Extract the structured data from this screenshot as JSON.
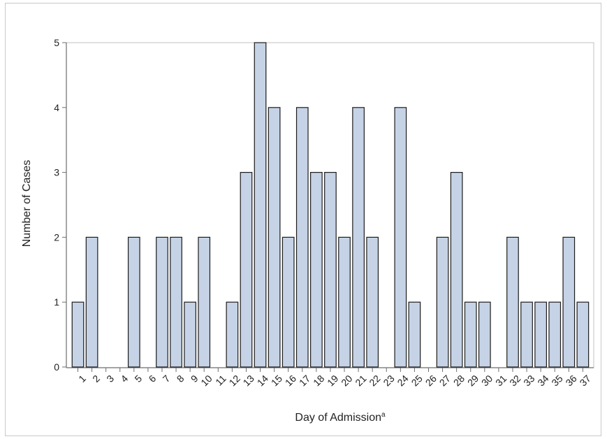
{
  "chart_data": {
    "type": "bar",
    "title": "",
    "xlabel": "Day of Admission",
    "xlabel_superscript": "a",
    "ylabel": "Number of Cases",
    "ylim": [
      0,
      5
    ],
    "yticks": [
      0,
      1,
      2,
      3,
      4,
      5
    ],
    "grid": false,
    "categories": [
      "1",
      "2",
      "3",
      "4",
      "5",
      "6",
      "7",
      "8",
      "9",
      "10",
      "11",
      "12",
      "13",
      "14",
      "15",
      "16",
      "17",
      "18",
      "19",
      "20",
      "21",
      "22",
      "23",
      "24",
      "25",
      "26",
      "27",
      "28",
      "29",
      "30",
      "31",
      "32",
      "33",
      "34",
      "35",
      "36",
      "37"
    ],
    "values": [
      1,
      2,
      0,
      0,
      2,
      0,
      2,
      2,
      1,
      2,
      0,
      1,
      3,
      5,
      4,
      2,
      4,
      3,
      3,
      2,
      4,
      2,
      0,
      4,
      1,
      0,
      2,
      3,
      1,
      1,
      0,
      2,
      1,
      1,
      1,
      2,
      1
    ],
    "colors": {
      "bar_fill": "#c6d3e6",
      "bar_stroke": "#1c1c1c"
    }
  }
}
